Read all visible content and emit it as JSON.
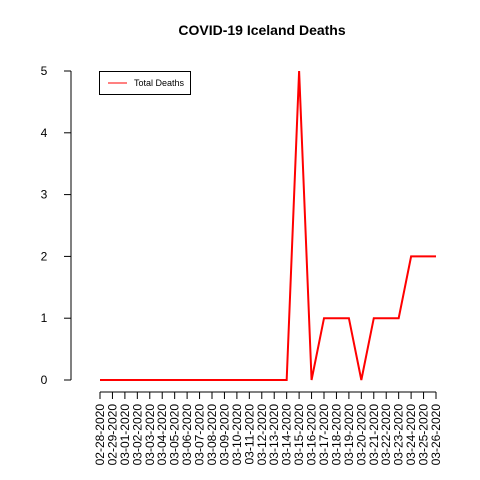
{
  "chart_data": {
    "type": "line",
    "title": "COVID-19 Iceland Deaths",
    "xlabel": "",
    "ylabel": "",
    "categories": [
      "02-28-2020",
      "02-29-2020",
      "03-01-2020",
      "03-02-2020",
      "03-03-2020",
      "03-04-2020",
      "03-05-2020",
      "03-06-2020",
      "03-07-2020",
      "03-08-2020",
      "03-09-2020",
      "03-10-2020",
      "03-11-2020",
      "03-12-2020",
      "03-13-2020",
      "03-14-2020",
      "03-15-2020",
      "03-16-2020",
      "03-17-2020",
      "03-18-2020",
      "03-19-2020",
      "03-20-2020",
      "03-21-2020",
      "03-22-2020",
      "03-23-2020",
      "03-24-2020",
      "03-25-2020",
      "03-26-2020"
    ],
    "series": [
      {
        "name": "Total Deaths",
        "color": "#ff0000",
        "values": [
          0,
          0,
          0,
          0,
          0,
          0,
          0,
          0,
          0,
          0,
          0,
          0,
          0,
          0,
          0,
          0,
          5,
          0,
          1,
          1,
          1,
          0,
          1,
          1,
          1,
          2,
          2,
          2
        ]
      }
    ],
    "ylim": [
      0,
      5
    ],
    "yticks": [
      0,
      1,
      2,
      3,
      4,
      5
    ],
    "grid": false,
    "legend_position": "top-left"
  }
}
